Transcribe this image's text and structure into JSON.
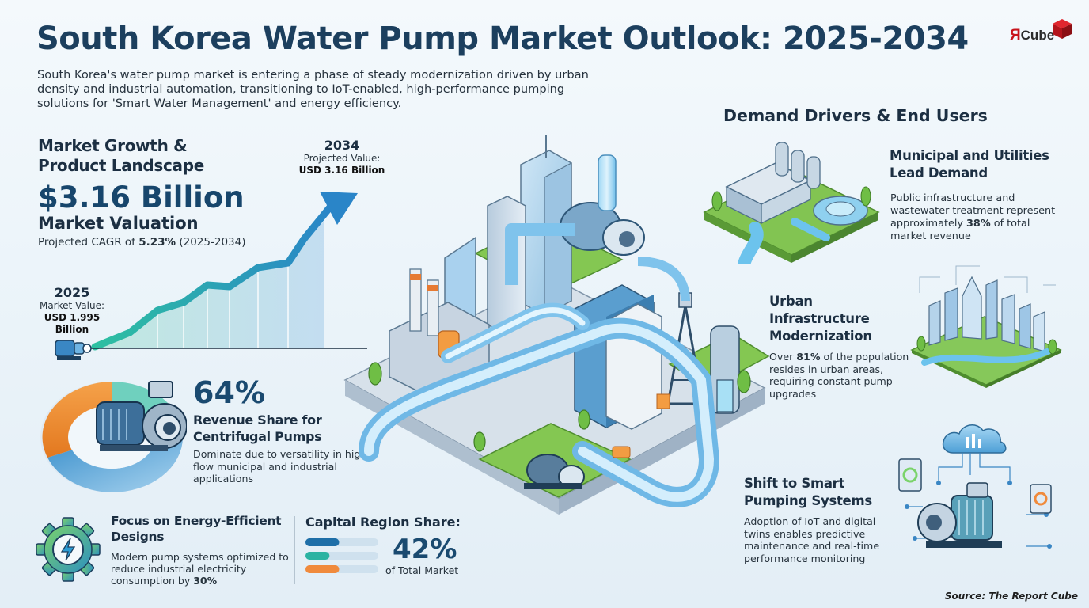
{
  "header": {
    "title": "South Korea Water Pump  Market Outlook: 2025-2034",
    "intro": "South Korea's water pump market is entering a phase of steady modernization driven by urban density and industrial automation, transitioning to IoT-enabled, high-performance pumping solutions for 'Smart Water Management' and energy efficiency.",
    "logo_r": "Я",
    "logo_text": "Cube"
  },
  "growth": {
    "title": "Market Growth & Product Landscape",
    "value": "$3.16 Billion",
    "value_label": "Market Valuation",
    "cagr_prefix": "Projected CAGR of ",
    "cagr_value": "5.23%",
    "cagr_suffix": " (2025-2034)",
    "start": {
      "year": "2025",
      "label": "Market Value:",
      "value": "USD 1.995 Billion"
    },
    "end": {
      "year": "2034",
      "label": "Projected Value:",
      "value": "USD 3.16 Billion"
    }
  },
  "centrifugal": {
    "percent": "64%",
    "heading": "Revenue Share for Centrifugal Pumps",
    "description": "Dominate due to versatility in high-flow municipal and industrial applications",
    "share": 0.64
  },
  "energy": {
    "heading": "Focus on Energy-Efficient Designs",
    "description_prefix": "Modern pump systems optimized to reduce industrial electricity consumption by ",
    "description_value": "30%"
  },
  "capital": {
    "heading": "Capital Region Share:",
    "percent": "42%",
    "sub": "of Total Market",
    "bar_levels": [
      0.42,
      0.3,
      0.42
    ],
    "bar_colors": [
      "#1f6fa8",
      "#2bb3a2",
      "#f08a3c"
    ]
  },
  "demand": {
    "heading": "Demand Drivers & End Users",
    "municipal": {
      "heading": "Municipal and Utilities Lead Demand",
      "description_prefix": "Public infrastructure and wastewater treatment represent approximately ",
      "description_value": "38%",
      "description_suffix": " of total market revenue"
    },
    "urban": {
      "heading": "Urban Infrastructure Modernization",
      "description_prefix": "Over ",
      "description_value": "81%",
      "description_suffix": " of the population resides in urban areas, requiring constant pump upgrades"
    },
    "smart": {
      "heading": "Shift to Smart Pumping Systems",
      "description": "Adoption of IoT and digital twins enables predictive maintenance and real-time performance monitoring"
    }
  },
  "source": "Source: The Report Cube",
  "colors": {
    "title": "#1c3f5e",
    "accent_blue": "#1f6fa8",
    "accent_teal": "#2bb3a2",
    "accent_orange": "#f08a3c",
    "grass": "#7cc24a"
  }
}
